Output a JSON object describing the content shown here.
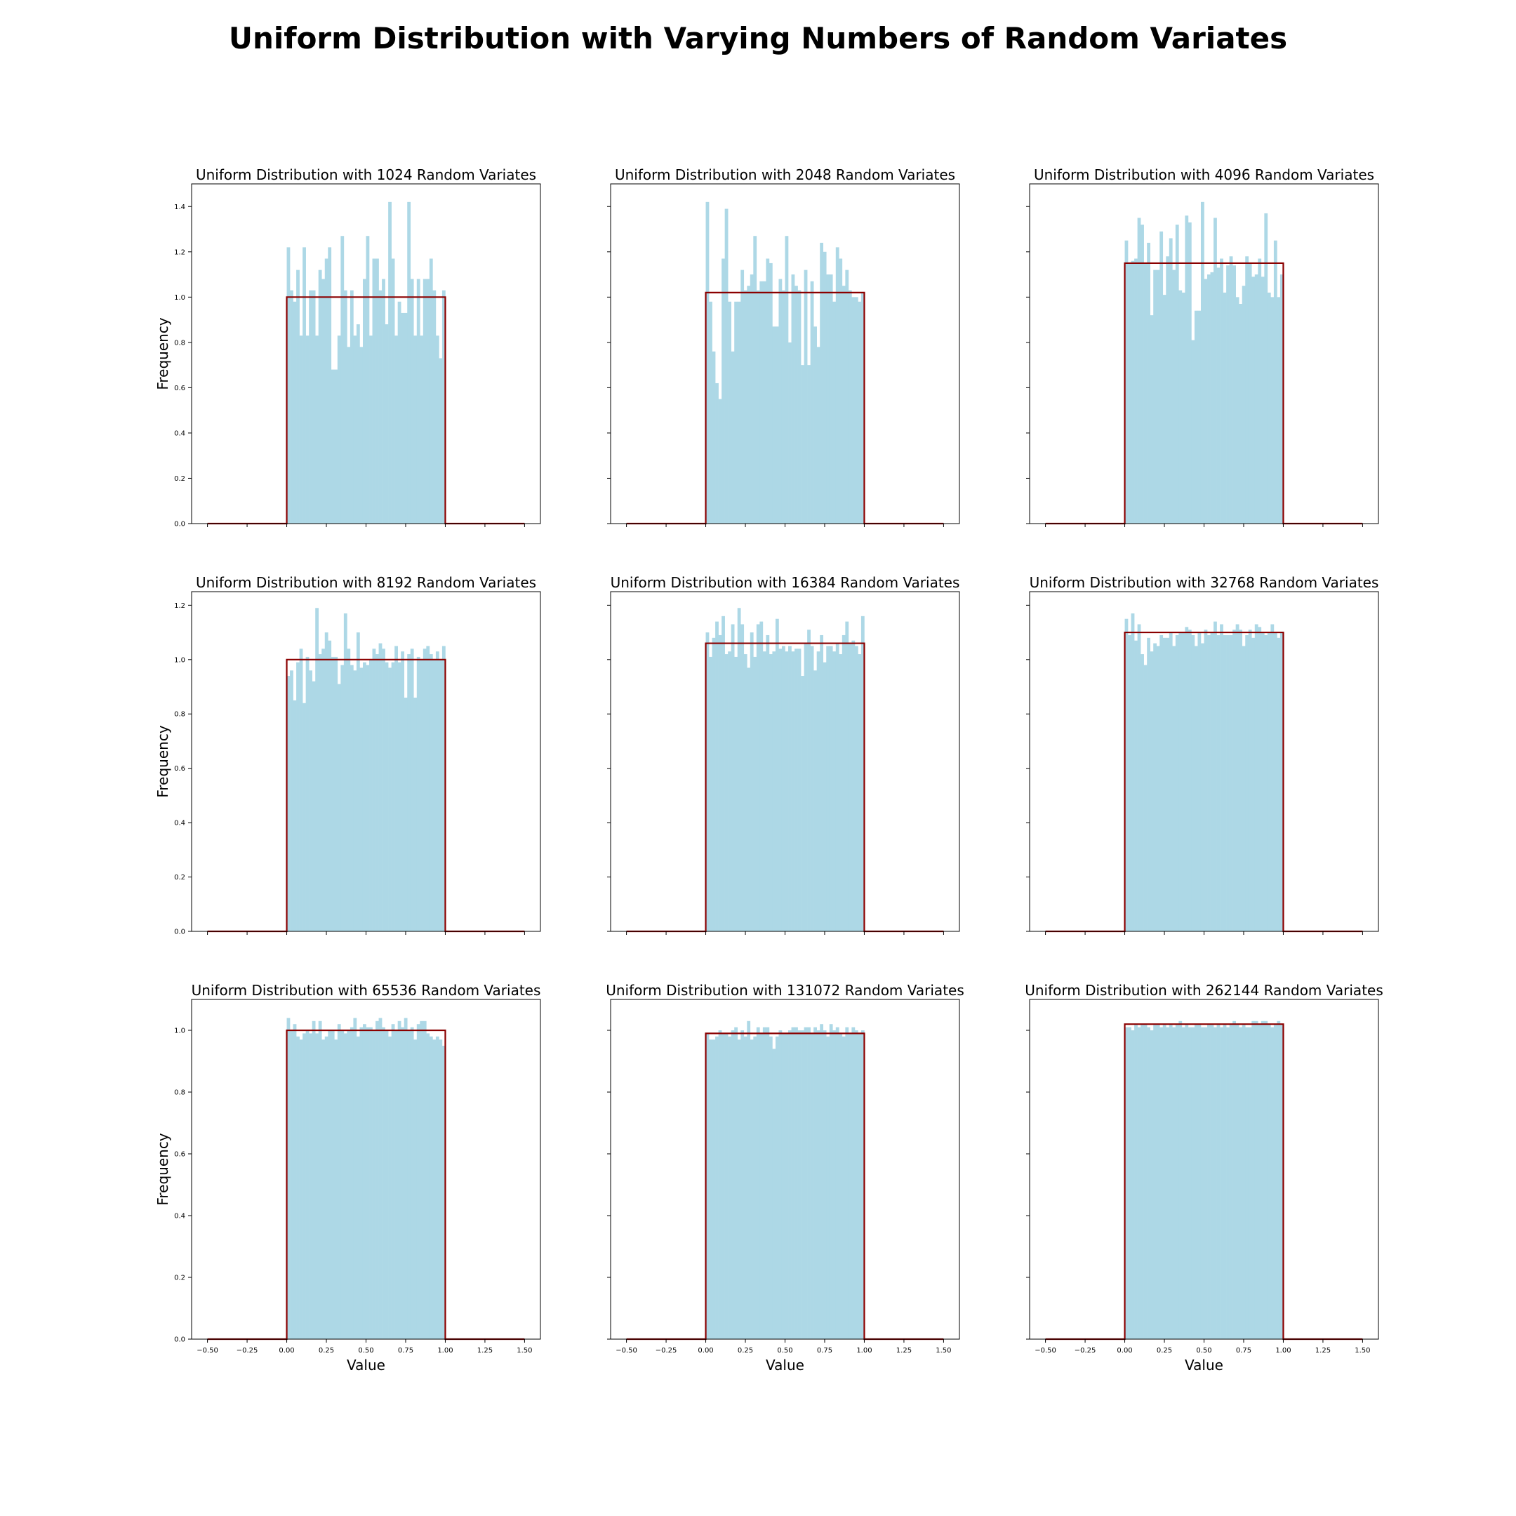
{
  "figure": {
    "title": "Uniform Distribution with Varying Numbers of Random Variates"
  },
  "colors": {
    "bars": "#add8e6",
    "pdf_line": "#8b0000",
    "axes": "#000000"
  },
  "chart_data": [
    {
      "type": "bar",
      "title": "Uniform Distribution with 1024 Random Variates",
      "xlabel": "",
      "ylabel": "Frequency",
      "xlim": [
        -0.6,
        1.6
      ],
      "ylim": [
        0,
        1.5
      ],
      "xticks": [
        -0.5,
        -0.25,
        0.0,
        0.25,
        0.5,
        0.75,
        1.0,
        1.25,
        1.5
      ],
      "xtick_labels": [],
      "yticks": [
        0.0,
        0.2,
        0.4,
        0.6,
        0.8,
        1.0,
        1.2,
        1.4
      ],
      "ytick_labels": [
        "0.0",
        "0.2",
        "0.4",
        "0.6",
        "0.8",
        "1.0",
        "1.2",
        "1.4"
      ],
      "bin_range": [
        0,
        1
      ],
      "values": [
        1.22,
        1.03,
        0.98,
        1.12,
        0.83,
        1.22,
        0.83,
        1.03,
        1.03,
        0.83,
        1.12,
        1.08,
        1.17,
        1.22,
        0.68,
        0.68,
        0.83,
        1.27,
        1.03,
        0.78,
        1.03,
        0.83,
        0.88,
        0.78,
        1.08,
        1.27,
        0.83,
        1.17,
        1.17,
        1.03,
        1.08,
        0.88,
        1.42,
        1.17,
        0.83,
        0.98,
        0.93,
        0.93,
        1.42,
        1.08,
        0.83,
        1.08,
        0.83,
        1.08,
        1.08,
        1.17,
        1.03,
        0.83,
        0.73,
        1.03
      ],
      "pdf": {
        "x": [
          -0.5,
          0.0,
          0.0,
          1.0,
          1.0,
          1.5
        ],
        "y": [
          0,
          0,
          1.0,
          1.0,
          0,
          0
        ]
      }
    },
    {
      "type": "bar",
      "title": "Uniform Distribution with 2048 Random Variates",
      "xlabel": "",
      "ylabel": "",
      "xlim": [
        -0.6,
        1.6
      ],
      "ylim": [
        0,
        1.5
      ],
      "xticks": [
        -0.5,
        -0.25,
        0.0,
        0.25,
        0.5,
        0.75,
        1.0,
        1.25,
        1.5
      ],
      "xtick_labels": [],
      "yticks": [
        0.0,
        0.2,
        0.4,
        0.6,
        0.8,
        1.0,
        1.2,
        1.4
      ],
      "ytick_labels": [],
      "bin_range": [
        0,
        1
      ],
      "values": [
        1.42,
        0.98,
        0.76,
        0.62,
        0.55,
        1.17,
        1.39,
        0.98,
        0.76,
        0.98,
        0.98,
        1.12,
        1.03,
        1.05,
        1.1,
        1.27,
        1.03,
        1.07,
        1.07,
        1.17,
        1.15,
        0.87,
        0.87,
        1.08,
        1.03,
        1.27,
        0.8,
        1.1,
        1.05,
        1.03,
        0.7,
        1.12,
        0.7,
        1.07,
        0.87,
        0.78,
        1.24,
        1.2,
        1.1,
        1.1,
        0.98,
        1.22,
        1.17,
        1.05,
        1.12,
        1.03,
        1.0,
        1.0,
        0.98,
        1.02
      ],
      "pdf": {
        "x": [
          -0.5,
          0.0,
          0.0,
          1.0,
          1.0,
          1.5
        ],
        "y": [
          0,
          0,
          1.02,
          1.02,
          0,
          0
        ]
      }
    },
    {
      "type": "bar",
      "title": "Uniform Distribution with 4096 Random Variates",
      "xlabel": "",
      "ylabel": "",
      "xlim": [
        -0.6,
        1.6
      ],
      "ylim": [
        0,
        1.5
      ],
      "xticks": [
        -0.5,
        -0.25,
        0.0,
        0.25,
        0.5,
        0.75,
        1.0,
        1.25,
        1.5
      ],
      "xtick_labels": [],
      "yticks": [
        0.0,
        0.2,
        0.4,
        0.6,
        0.8,
        1.0,
        1.2,
        1.4
      ],
      "ytick_labels": [],
      "bin_range": [
        0,
        1
      ],
      "values": [
        1.25,
        1.15,
        1.16,
        1.17,
        1.35,
        1.32,
        1.15,
        1.24,
        0.92,
        1.12,
        1.12,
        1.29,
        1.01,
        1.18,
        1.26,
        1.12,
        1.32,
        1.03,
        1.02,
        1.36,
        1.33,
        0.81,
        0.94,
        0.94,
        1.42,
        1.08,
        1.1,
        1.11,
        1.35,
        1.13,
        1.17,
        1.02,
        1.14,
        1.18,
        1.14,
        1.0,
        0.97,
        1.05,
        1.18,
        1.15,
        1.09,
        1.1,
        1.17,
        1.09,
        1.37,
        1.02,
        1.0,
        1.25,
        1.0,
        1.1
      ],
      "pdf": {
        "x": [
          -0.5,
          0.0,
          0.0,
          1.0,
          1.0,
          1.5
        ],
        "y": [
          0,
          0,
          1.15,
          1.15,
          0,
          0
        ]
      }
    },
    {
      "type": "bar",
      "title": "Uniform Distribution with 8192 Random Variates",
      "xlabel": "",
      "ylabel": "Frequency",
      "xlim": [
        -0.6,
        1.6
      ],
      "ylim": [
        0,
        1.25
      ],
      "xticks": [
        -0.5,
        -0.25,
        0.0,
        0.25,
        0.5,
        0.75,
        1.0,
        1.25,
        1.5
      ],
      "xtick_labels": [],
      "yticks": [
        0.0,
        0.2,
        0.4,
        0.6,
        0.8,
        1.0,
        1.2
      ],
      "ytick_labels": [
        "0.0",
        "0.2",
        "0.4",
        "0.6",
        "0.8",
        "1.0",
        "1.2"
      ],
      "bin_range": [
        0,
        1
      ],
      "values": [
        0.94,
        0.96,
        0.85,
        0.99,
        1.04,
        0.84,
        1.01,
        0.96,
        0.92,
        1.19,
        1.02,
        1.04,
        1.1,
        1.07,
        1.01,
        1.01,
        0.91,
        0.98,
        1.17,
        1.04,
        0.98,
        0.96,
        1.1,
        0.97,
        0.99,
        0.98,
        1.0,
        1.04,
        1.02,
        1.06,
        1.04,
        0.99,
        0.97,
        0.99,
        1.05,
        0.99,
        1.03,
        0.86,
        1.02,
        1.04,
        0.86,
        1.01,
        1.0,
        1.04,
        1.05,
        1.02,
        1.0,
        1.03,
        1.0,
        1.05
      ],
      "pdf": {
        "x": [
          -0.5,
          0.0,
          0.0,
          1.0,
          1.0,
          1.5
        ],
        "y": [
          0,
          0,
          1.0,
          1.0,
          0,
          0
        ]
      }
    },
    {
      "type": "bar",
      "title": "Uniform Distribution with 16384 Random Variates",
      "xlabel": "",
      "ylabel": "",
      "xlim": [
        -0.6,
        1.6
      ],
      "ylim": [
        0,
        1.25
      ],
      "xticks": [
        -0.5,
        -0.25,
        0.0,
        0.25,
        0.5,
        0.75,
        1.0,
        1.25,
        1.5
      ],
      "xtick_labels": [],
      "yticks": [
        0.0,
        0.2,
        0.4,
        0.6,
        0.8,
        1.0,
        1.2
      ],
      "ytick_labels": [],
      "bin_range": [
        0,
        1
      ],
      "values": [
        1.1,
        1.01,
        1.08,
        1.14,
        1.09,
        1.16,
        1.02,
        1.03,
        1.13,
        1.01,
        1.19,
        1.13,
        1.02,
        0.97,
        1.1,
        1.01,
        1.13,
        1.14,
        1.03,
        1.09,
        1.02,
        1.03,
        1.15,
        1.04,
        1.05,
        1.03,
        1.05,
        1.03,
        1.04,
        1.04,
        0.94,
        1.06,
        1.11,
        1.05,
        0.96,
        1.03,
        1.09,
        0.99,
        1.05,
        1.05,
        1.03,
        1.06,
        1.02,
        1.09,
        1.14,
        1.06,
        1.07,
        1.05,
        1.02,
        1.16
      ],
      "pdf": {
        "x": [
          -0.5,
          0.0,
          0.0,
          1.0,
          1.0,
          1.5
        ],
        "y": [
          0,
          0,
          1.06,
          1.06,
          0,
          0
        ]
      }
    },
    {
      "type": "bar",
      "title": "Uniform Distribution with 32768 Random Variates",
      "xlabel": "",
      "ylabel": "",
      "xlim": [
        -0.6,
        1.6
      ],
      "ylim": [
        0,
        1.25
      ],
      "xticks": [
        -0.5,
        -0.25,
        0.0,
        0.25,
        0.5,
        0.75,
        1.0,
        1.25,
        1.5
      ],
      "xtick_labels": [],
      "yticks": [
        0.0,
        0.2,
        0.4,
        0.6,
        0.8,
        1.0,
        1.2
      ],
      "ytick_labels": [],
      "bin_range": [
        0,
        1
      ],
      "values": [
        1.15,
        1.09,
        1.17,
        1.07,
        1.13,
        1.02,
        0.98,
        1.08,
        1.03,
        1.06,
        1.05,
        1.09,
        1.08,
        1.08,
        1.1,
        1.05,
        1.09,
        1.1,
        1.1,
        1.12,
        1.11,
        1.09,
        1.05,
        1.1,
        1.06,
        1.11,
        1.09,
        1.1,
        1.14,
        1.09,
        1.13,
        1.09,
        1.09,
        1.09,
        1.11,
        1.13,
        1.11,
        1.05,
        1.09,
        1.11,
        1.08,
        1.13,
        1.12,
        1.1,
        1.09,
        1.1,
        1.13,
        1.1,
        1.08,
        1.1
      ],
      "pdf": {
        "x": [
          -0.5,
          0.0,
          0.0,
          1.0,
          1.0,
          1.5
        ],
        "y": [
          0,
          0,
          1.1,
          1.1,
          0,
          0
        ]
      }
    },
    {
      "type": "bar",
      "title": "Uniform Distribution with 65536 Random Variates",
      "xlabel": "Value",
      "ylabel": "Frequency",
      "xlim": [
        -0.6,
        1.6
      ],
      "ylim": [
        0,
        1.1
      ],
      "xticks": [
        -0.5,
        -0.25,
        0.0,
        0.25,
        0.5,
        0.75,
        1.0,
        1.25,
        1.5
      ],
      "xtick_labels": [
        "−0.50",
        "−0.25",
        "0.00",
        "0.25",
        "0.50",
        "0.75",
        "1.00",
        "1.25",
        "1.50"
      ],
      "yticks": [
        0.0,
        0.2,
        0.4,
        0.6,
        0.8,
        1.0
      ],
      "ytick_labels": [
        "0.0",
        "0.2",
        "0.4",
        "0.6",
        "0.8",
        "1.0"
      ],
      "bin_range": [
        0,
        1
      ],
      "values": [
        1.04,
        1.0,
        1.02,
        0.98,
        0.97,
        0.99,
        1.0,
        0.99,
        1.03,
        0.99,
        1.03,
        0.97,
        0.98,
        1.0,
        1.0,
        0.97,
        1.02,
        1.0,
        0.99,
        1.0,
        1.01,
        1.04,
        0.98,
        1.01,
        1.02,
        1.01,
        1.01,
        1.0,
        1.03,
        1.04,
        1.01,
        1.0,
        0.98,
        1.02,
        1.0,
        1.03,
        1.01,
        1.04,
        1.0,
        1.01,
        0.97,
        1.02,
        1.03,
        1.03,
        0.99,
        0.98,
        0.97,
        0.98,
        0.97,
        0.95
      ],
      "pdf": {
        "x": [
          -0.5,
          0.0,
          0.0,
          1.0,
          1.0,
          1.5
        ],
        "y": [
          0,
          0,
          1.0,
          1.0,
          0,
          0
        ]
      }
    },
    {
      "type": "bar",
      "title": "Uniform Distribution with 131072 Random Variates",
      "xlabel": "Value",
      "ylabel": "",
      "xlim": [
        -0.6,
        1.6
      ],
      "ylim": [
        0,
        1.1
      ],
      "xticks": [
        -0.5,
        -0.25,
        0.0,
        0.25,
        0.5,
        0.75,
        1.0,
        1.25,
        1.5
      ],
      "xtick_labels": [
        "−0.50",
        "−0.25",
        "0.00",
        "0.25",
        "0.50",
        "0.75",
        "1.00",
        "1.25",
        "1.50"
      ],
      "yticks": [
        0.0,
        0.2,
        0.4,
        0.6,
        0.8,
        1.0
      ],
      "ytick_labels": [],
      "bin_range": [
        0,
        1
      ],
      "values": [
        0.99,
        0.97,
        0.97,
        0.98,
        1.0,
        0.99,
        0.99,
        0.98,
        1.0,
        1.01,
        0.97,
        1.0,
        0.98,
        1.03,
        0.97,
        0.98,
        1.01,
        0.99,
        1.01,
        1.01,
        0.98,
        0.94,
        0.98,
        1.0,
        0.99,
        0.99,
        1.0,
        1.01,
        1.01,
        1.0,
        1.0,
        1.01,
        1.01,
        0.99,
        1.01,
        1.0,
        1.02,
        1.0,
        0.98,
        1.02,
        1.0,
        1.01,
        0.99,
        0.98,
        1.01,
        0.99,
        1.01,
        1.0,
        0.99,
        1.0
      ],
      "pdf": {
        "x": [
          -0.5,
          0.0,
          0.0,
          1.0,
          1.0,
          1.5
        ],
        "y": [
          0,
          0,
          0.99,
          0.99,
          0,
          0
        ]
      }
    },
    {
      "type": "bar",
      "title": "Uniform Distribution with 262144 Random Variates",
      "xlabel": "Value",
      "ylabel": "",
      "xlim": [
        -0.6,
        1.6
      ],
      "ylim": [
        0,
        1.1
      ],
      "xticks": [
        -0.5,
        -0.25,
        0.0,
        0.25,
        0.5,
        0.75,
        1.0,
        1.25,
        1.5
      ],
      "xtick_labels": [
        "−0.50",
        "−0.25",
        "0.00",
        "0.25",
        "0.50",
        "0.75",
        "1.00",
        "1.25",
        "1.50"
      ],
      "yticks": [
        0.0,
        0.2,
        0.4,
        0.6,
        0.8,
        1.0
      ],
      "ytick_labels": [],
      "bin_range": [
        0,
        1
      ],
      "values": [
        1.01,
        1.01,
        1.0,
        1.02,
        1.01,
        1.02,
        1.02,
        1.01,
        1.0,
        1.02,
        1.02,
        1.01,
        1.02,
        1.01,
        1.02,
        1.01,
        1.02,
        1.03,
        1.01,
        1.02,
        1.01,
        1.01,
        1.02,
        1.02,
        1.01,
        1.01,
        1.02,
        1.02,
        1.01,
        1.02,
        1.01,
        1.02,
        1.01,
        1.02,
        1.03,
        1.02,
        1.01,
        1.02,
        1.01,
        1.01,
        1.03,
        1.03,
        1.02,
        1.03,
        1.03,
        1.02,
        1.01,
        1.02,
        1.03,
        1.02
      ],
      "pdf": {
        "x": [
          -0.5,
          0.0,
          0.0,
          1.0,
          1.0,
          1.5
        ],
        "y": [
          0,
          0,
          1.02,
          1.02,
          0,
          0
        ]
      }
    }
  ]
}
